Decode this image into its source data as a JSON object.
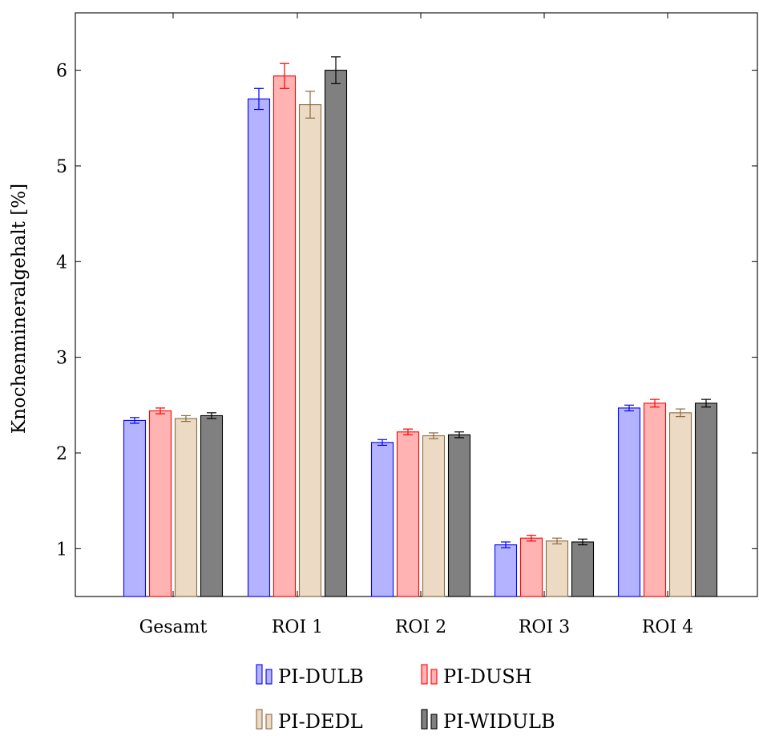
{
  "chart_data": {
    "type": "bar",
    "title": "",
    "xlabel": "",
    "ylabel": "Knochenmineralgehalt [%]",
    "categories": [
      "Gesamt",
      "ROI 1",
      "ROI 2",
      "ROI 3",
      "ROI 4"
    ],
    "ylim": [
      0.5,
      6.6
    ],
    "yticks": [
      "1",
      "2",
      "3",
      "4",
      "5",
      "6"
    ],
    "grid": false,
    "legend_position": "bottom",
    "series": [
      {
        "name": "PI-DULB",
        "values": [
          2.34,
          5.7,
          2.11,
          1.04,
          2.47
        ],
        "errors": [
          0.03,
          0.11,
          0.03,
          0.03,
          0.03
        ],
        "fill": "#b3b3ff",
        "stroke": "#0000ff"
      },
      {
        "name": "PI-DUSH",
        "values": [
          2.44,
          5.94,
          2.22,
          1.11,
          2.52
        ],
        "errors": [
          0.03,
          0.13,
          0.03,
          0.03,
          0.04
        ],
        "fill": "#ffb3b3",
        "stroke": "#ff0000"
      },
      {
        "name": "PI-DEDL",
        "values": [
          2.36,
          5.64,
          2.18,
          1.08,
          2.42
        ],
        "errors": [
          0.03,
          0.14,
          0.03,
          0.03,
          0.04
        ],
        "fill": "#ecdac4",
        "stroke": "#8c6a3f"
      },
      {
        "name": "PI-WIDULB",
        "values": [
          2.39,
          6.0,
          2.19,
          1.07,
          2.52
        ],
        "errors": [
          0.03,
          0.14,
          0.03,
          0.03,
          0.04
        ],
        "fill": "#808080",
        "stroke": "#000000"
      }
    ]
  }
}
